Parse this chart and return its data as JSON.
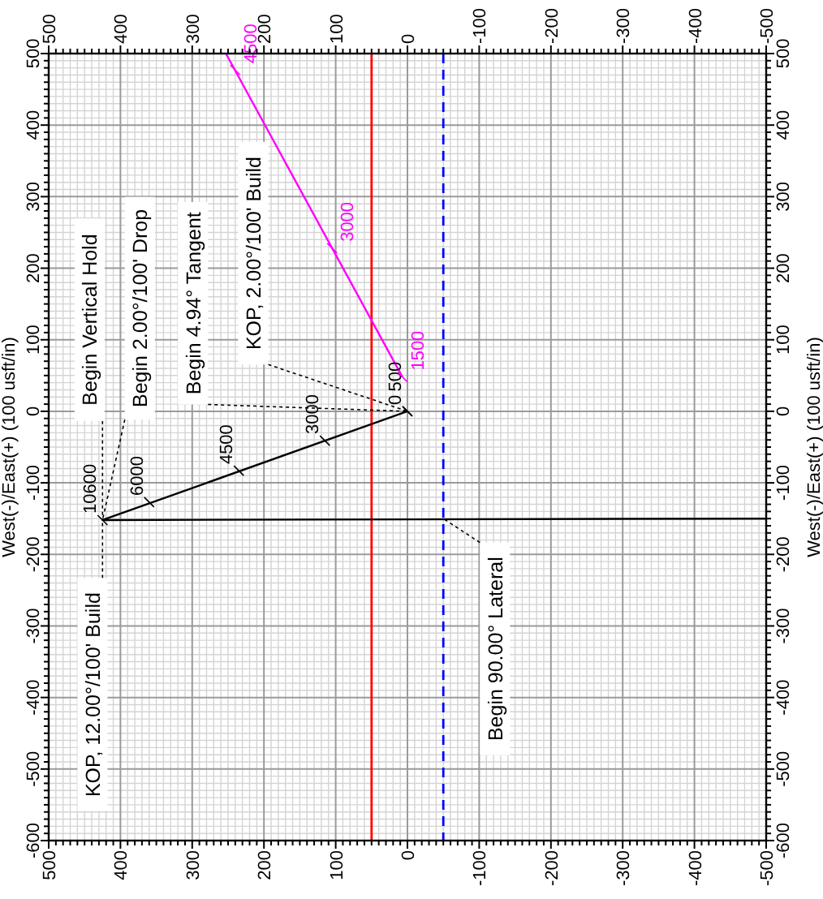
{
  "chart_data": {
    "type": "line",
    "ylabel": "West(-)/East(+) (100 usft/in)",
    "y2label": "West(-)/East(+) (100 usft/in)",
    "xlim": [
      500,
      -500
    ],
    "xticks": [
      500,
      400,
      300,
      200,
      100,
      0,
      -100,
      -200,
      -300,
      -400,
      -500
    ],
    "x2lim": [
      500,
      -500
    ],
    "x2ticks": [
      500,
      400,
      300,
      200,
      100,
      0,
      -100,
      -200,
      -300,
      -400,
      -500
    ],
    "ylim": [
      -600,
      500
    ],
    "yticks": [
      -600,
      -500,
      -400,
      -300,
      -200,
      -100,
      0,
      100,
      200,
      300,
      400,
      500
    ],
    "y2lim": [
      -600,
      500
    ],
    "y2ticks": [
      -600,
      -500,
      -400,
      -300,
      -200,
      -100,
      0,
      100,
      200,
      300,
      400,
      500
    ],
    "series": [
      {
        "color": "#000000",
        "x": [
          0,
          425,
          -500
        ],
        "values": [
          0,
          -152,
          -150
        ]
      },
      {
        "color": "#ff00ff",
        "x": [
          7,
          253
        ],
        "values": [
          48,
          500
        ]
      }
    ],
    "ref_lines": [
      {
        "axis": "x",
        "value": 50,
        "color": "#ff0000",
        "line_style": "solid"
      },
      {
        "axis": "x",
        "value": -50,
        "color": "#0000ff",
        "line_style": "dashed"
      }
    ],
    "annotations": [
      {
        "text": "Begin Vertical Hold",
        "x": 425,
        "y": -152
      },
      {
        "text": "Begin 2.00°/100' Drop",
        "x": 425,
        "y": -152
      },
      {
        "text": "Begin 4.94° Tangent",
        "x": 0,
        "y": 0
      },
      {
        "text": "KOP, 2.00°/100' Build",
        "x": 0,
        "y": 0
      },
      {
        "text": "KOP, 12.00°/100' Build",
        "x": 425,
        "y": -152
      },
      {
        "text": "Begin 90.00° Lateral",
        "x": -50,
        "y": -150
      },
      {
        "text": "0",
        "x": 0,
        "y": 0
      },
      {
        "text": "500",
        "x": 0,
        "y": 0
      },
      {
        "text": "3000",
        "x": 115,
        "y": -41
      },
      {
        "text": "4500",
        "x": 235,
        "y": -83
      },
      {
        "text": "6000",
        "x": 360,
        "y": -127
      },
      {
        "text": "10600",
        "x": 425,
        "y": -152
      },
      {
        "text": "1500",
        "x": 7,
        "y": 48
      },
      {
        "text": "3000",
        "x": 105,
        "y": 228
      },
      {
        "text": "4500",
        "x": 240,
        "y": 477
      }
    ],
    "grid": true,
    "line_style": "solid"
  }
}
